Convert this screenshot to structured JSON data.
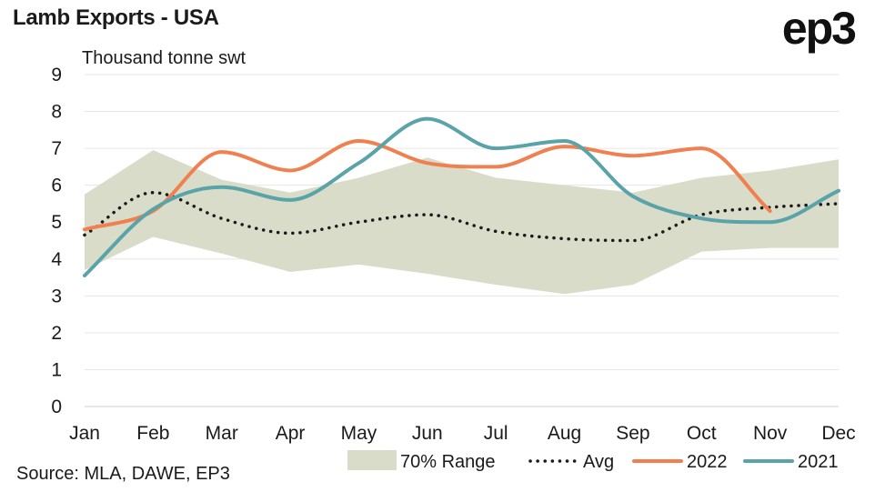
{
  "header": {
    "title": "Lamb Exports - USA",
    "logo": "ep3"
  },
  "footer": {
    "source": "Source: MLA, DAWE, EP3"
  },
  "chart_data": {
    "type": "line",
    "ylabel": "Thousand tonne swt",
    "categories": [
      "Jan",
      "Feb",
      "Mar",
      "Apr",
      "May",
      "Jun",
      "Jul",
      "Aug",
      "Sep",
      "Oct",
      "Nov",
      "Dec"
    ],
    "ylim": [
      0,
      9
    ],
    "yticks": [
      0,
      1,
      2,
      3,
      4,
      5,
      6,
      7,
      8,
      9
    ],
    "grid": true,
    "legend_position": "bottom-right",
    "colors": {
      "range": "#d9dcc8",
      "avg": "#1a1a1a",
      "2022": "#f08050",
      "2021": "#5aa3a8",
      "grid": "#e6e6e6"
    },
    "range": {
      "name": "70% Range",
      "upper": [
        5.75,
        6.95,
        6.15,
        5.8,
        6.2,
        6.75,
        6.2,
        6.0,
        5.8,
        6.2,
        6.4,
        6.7
      ],
      "lower": [
        3.7,
        4.6,
        4.15,
        3.65,
        3.85,
        3.6,
        3.3,
        3.05,
        3.3,
        4.2,
        4.3,
        4.3
      ]
    },
    "series": [
      {
        "name": "Avg",
        "style": "dotted",
        "values": [
          4.65,
          5.8,
          5.1,
          4.7,
          5.0,
          5.2,
          4.75,
          4.55,
          4.5,
          5.2,
          5.4,
          5.5
        ]
      },
      {
        "name": "2022",
        "style": "solid",
        "values": [
          4.8,
          5.3,
          6.9,
          6.4,
          7.2,
          6.6,
          6.5,
          7.05,
          6.8,
          7.0,
          5.3,
          null
        ]
      },
      {
        "name": "2021",
        "style": "solid",
        "values": [
          3.55,
          5.35,
          5.95,
          5.6,
          6.6,
          7.8,
          7.0,
          7.2,
          5.7,
          5.1,
          5.0,
          5.85
        ]
      }
    ]
  }
}
